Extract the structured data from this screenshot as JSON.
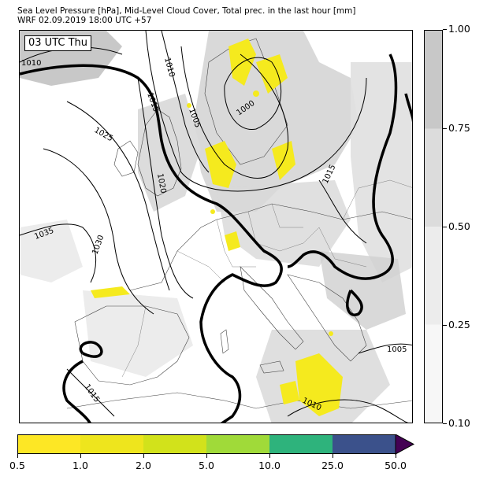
{
  "title_line1": "Sea Level Pressure [hPa], Mid-Level Cloud Cover, Total prec. in the last hour [mm]",
  "title_line2": "WRF 02.09.2019 18:00 UTC +57",
  "time_label": "03 UTC Thu",
  "isobar_labels": [
    "1010",
    "1010",
    "1015",
    "1005",
    "1000",
    "1025",
    "1020",
    "1035",
    "1030",
    "1015",
    "1005",
    "1015",
    "1010"
  ],
  "cloud_cover_colorbar": {
    "ticks": [
      "0.10",
      "0.25",
      "0.50",
      "0.75",
      "1.00"
    ],
    "colors": [
      "#f7f7f7",
      "#ececec",
      "#dcdcdc",
      "#c8c8c8"
    ]
  },
  "precip_colorbar": {
    "ticks": [
      "0.5",
      "1.0",
      "2.0",
      "5.0",
      "10.0",
      "25.0",
      "50.0"
    ],
    "colors": [
      "#fde725",
      "#eee51d",
      "#d2e21b",
      "#a0da39",
      "#2eb37c",
      "#3b518b",
      "#440154"
    ]
  },
  "colors": {
    "cloud": "#c8c8c8",
    "precip": "#f5ea1e",
    "isobar": "#000000"
  }
}
